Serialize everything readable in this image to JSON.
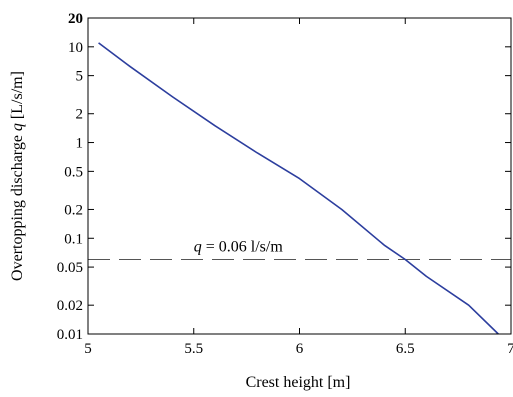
{
  "chart_data": {
    "type": "line",
    "xlabel": "Crest height  [m]",
    "ylabel_prefix": "Overtopping discharge  ",
    "ylabel_var": "q",
    "ylabel_unit": "  [L/s/m]",
    "xlim": [
      5,
      7
    ],
    "ylim": [
      0.01,
      20
    ],
    "y_scale": "log",
    "grid": false,
    "x_ticks": [
      5,
      5.5,
      6,
      6.5,
      7
    ],
    "x_tick_labels": [
      "5",
      "5.5",
      "6",
      "6.5",
      "7"
    ],
    "y_ticks": [
      0.01,
      0.02,
      0.05,
      0.1,
      0.2,
      0.5,
      1,
      2,
      5,
      10,
      20
    ],
    "y_tick_labels": [
      "0.01",
      "0.02",
      "0.05",
      "0.1",
      "0.2",
      "0.5",
      "1",
      "2",
      "5",
      "10",
      "20"
    ],
    "series": [
      {
        "color": "#2c3e9e",
        "style": "solid",
        "x": [
          5.05,
          5.2,
          5.4,
          5.6,
          5.8,
          6.0,
          6.2,
          6.4,
          6.5,
          6.6,
          6.8,
          6.94
        ],
        "y": [
          11,
          6.2,
          3.0,
          1.5,
          0.78,
          0.42,
          0.2,
          0.085,
          0.06,
          0.04,
          0.02,
          0.01
        ]
      }
    ],
    "reference_line": {
      "y": 0.06,
      "style": "dashed",
      "color": "#555555",
      "label_var": "q",
      "label_rest": " = 0.06 l/s/m",
      "label_x": 5.5
    }
  }
}
